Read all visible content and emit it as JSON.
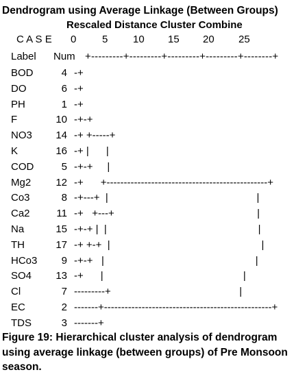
{
  "header": {
    "title": "Dendrogram using Average Linkage (Between Groups)",
    "subtitle": "Rescaled Distance Cluster Combine"
  },
  "scale": {
    "case_label": "C A S E",
    "ticks": [
      "0",
      "5",
      "10",
      "15",
      "20",
      "25"
    ],
    "label_heading": "Label",
    "num_heading": "Num",
    "ruler": "+---------+---------+---------+---------+--------+"
  },
  "rows": [
    {
      "label": "BOD",
      "num": 4,
      "tree": "-+"
    },
    {
      "label": "DO",
      "num": 6,
      "tree": "-+"
    },
    {
      "label": "PH",
      "num": 1,
      "tree": "-+"
    },
    {
      "label": "F",
      "num": 10,
      "tree": "-+-+"
    },
    {
      "label": "NO3",
      "num": 14,
      "tree": "-+ +-----+"
    },
    {
      "label": "K",
      "num": 16,
      "tree": "-+ |      |"
    },
    {
      "label": "COD",
      "num": 5,
      "tree": "-+-+     |"
    },
    {
      "label": "Mg2",
      "num": 12,
      "tree": "-+      +-----------------------------------------------+"
    },
    {
      "label": "Co3",
      "num": 8,
      "tree": "-+---+  |                                                    |"
    },
    {
      "label": "Ca2",
      "num": 11,
      "tree": "-+   +---+                                                  |"
    },
    {
      "label": "Na",
      "num": 15,
      "tree": "-+-+ |  |                                                     |"
    },
    {
      "label": "TH",
      "num": 17,
      "tree": "-+ +-+  |                                                     |"
    },
    {
      "label": "HCo3",
      "num": 9,
      "tree": "-+-+   |                                                     |"
    },
    {
      "label": "SO4",
      "num": 13,
      "tree": "-+      |                                                 |"
    },
    {
      "label": "Cl",
      "num": 7,
      "tree": "---------+                                             |"
    },
    {
      "label": "EC",
      "num": 2,
      "tree": "-------+-------------------------------------------------+"
    },
    {
      "label": "TDS",
      "num": 3,
      "tree": "-------+"
    }
  ],
  "caption": {
    "lines": [
      "Figure 19: Hierarchical cluster analysis of dendrogram",
      "using average linkage (between groups) of Pre Monsoon",
      "season."
    ]
  }
}
